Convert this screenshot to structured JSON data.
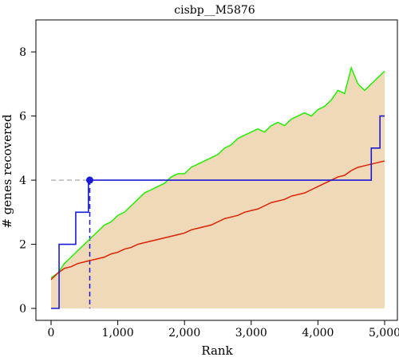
{
  "chart_data": {
    "type": "line",
    "title": "cisbp__M5876",
    "xlabel": "Rank",
    "ylabel": "# genes recovered",
    "xlim": [
      0,
      5000
    ],
    "ylim": [
      0,
      8.5
    ],
    "x_ticks": [
      0,
      1000,
      2000,
      3000,
      4000,
      5000
    ],
    "x_tick_labels": [
      "0",
      "1,000",
      "2,000",
      "3,000",
      "4,000",
      "5,000"
    ],
    "y_ticks": [
      0,
      2,
      4,
      6,
      8
    ],
    "y_tick_labels": [
      "0",
      "2",
      "4",
      "6",
      "8"
    ],
    "grid": false,
    "colors": {
      "band_fill": "#f0d9b9",
      "upper_line": "#22ee00",
      "mean_line": "#dd2200",
      "recovery_curve": "#1a1ad6",
      "reference_line": "#a0a0a0"
    },
    "series": [
      {
        "role": "mean_plus_sd",
        "x": [
          0,
          100,
          200,
          300,
          400,
          500,
          600,
          700,
          800,
          900,
          1000,
          1100,
          1200,
          1300,
          1400,
          1500,
          1600,
          1700,
          1800,
          1900,
          2000,
          2100,
          2200,
          2300,
          2400,
          2500,
          2600,
          2700,
          2800,
          2900,
          3000,
          3100,
          3200,
          3300,
          3400,
          3500,
          3600,
          3700,
          3800,
          3900,
          4000,
          4100,
          4200,
          4300,
          4400,
          4500,
          4600,
          4700,
          4800,
          4900,
          5000
        ],
        "y": [
          0.95,
          1.1,
          1.4,
          1.6,
          1.8,
          2.0,
          2.2,
          2.4,
          2.6,
          2.7,
          2.9,
          3.0,
          3.2,
          3.4,
          3.6,
          3.7,
          3.8,
          3.9,
          4.1,
          4.2,
          4.2,
          4.4,
          4.5,
          4.6,
          4.7,
          4.8,
          5.0,
          5.1,
          5.3,
          5.4,
          5.5,
          5.6,
          5.5,
          5.7,
          5.8,
          5.7,
          5.9,
          6.0,
          6.1,
          6.0,
          6.2,
          6.3,
          6.5,
          6.8,
          6.7,
          7.5,
          7.0,
          6.8,
          7.0,
          7.2,
          7.4
        ]
      },
      {
        "role": "mean",
        "x": [
          0,
          100,
          200,
          300,
          400,
          500,
          600,
          700,
          800,
          900,
          1000,
          1100,
          1200,
          1300,
          1400,
          1500,
          1600,
          1700,
          1800,
          1900,
          2000,
          2100,
          2200,
          2300,
          2400,
          2500,
          2600,
          2700,
          2800,
          2900,
          3000,
          3100,
          3200,
          3300,
          3400,
          3500,
          3600,
          3700,
          3800,
          3900,
          4000,
          4100,
          4200,
          4300,
          4400,
          4500,
          4600,
          4700,
          4800,
          4900,
          5000
        ],
        "y": [
          0.9,
          1.1,
          1.25,
          1.3,
          1.4,
          1.45,
          1.5,
          1.55,
          1.6,
          1.7,
          1.75,
          1.85,
          1.9,
          2.0,
          2.05,
          2.1,
          2.15,
          2.2,
          2.25,
          2.3,
          2.35,
          2.45,
          2.5,
          2.55,
          2.6,
          2.7,
          2.8,
          2.85,
          2.9,
          3.0,
          3.05,
          3.1,
          3.2,
          3.3,
          3.35,
          3.4,
          3.5,
          3.55,
          3.6,
          3.7,
          3.8,
          3.9,
          4.0,
          4.1,
          4.15,
          4.3,
          4.4,
          4.45,
          4.5,
          4.55,
          4.6
        ]
      },
      {
        "role": "recovery_curve",
        "step_x": [
          0,
          120,
          120,
          370,
          370,
          560,
          560,
          4800,
          4800,
          4930,
          4930,
          5000
        ],
        "step_y": [
          0,
          0,
          2,
          2,
          3,
          3,
          4,
          4,
          5,
          5,
          6,
          6
        ]
      }
    ],
    "marker": {
      "x": 580,
      "y": 4
    }
  }
}
